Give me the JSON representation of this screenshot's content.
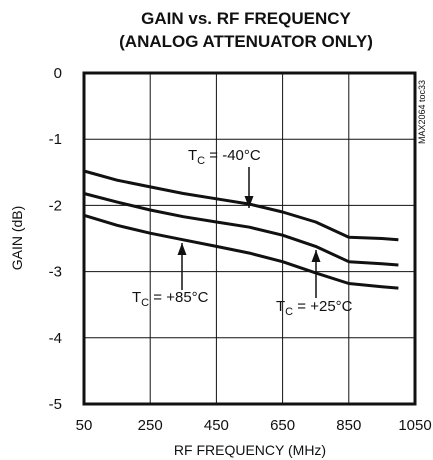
{
  "chart_data": {
    "type": "line",
    "title_line1": "GAIN vs. RF FREQUENCY",
    "title_line2": "(ANALOG ATTENUATOR ONLY)",
    "xlabel": "RF FREQUENCY (MHz)",
    "ylabel": "GAIN (dB)",
    "xlim": [
      50,
      1050
    ],
    "ylim": [
      -5,
      0
    ],
    "x_ticks": [
      "50",
      "250",
      "450",
      "650",
      "850",
      "1050"
    ],
    "y_ticks": [
      "0",
      "-1",
      "-2",
      "-3",
      "-4",
      "-5"
    ],
    "grid": true,
    "side_label": "MAX2064 toc33",
    "series": [
      {
        "name": "-40°C",
        "x": [
          50,
          150,
          250,
          350,
          450,
          550,
          650,
          750,
          850,
          950,
          1000
        ],
        "y": [
          -1.48,
          -1.62,
          -1.72,
          -1.82,
          -1.9,
          -1.98,
          -2.1,
          -2.25,
          -2.48,
          -2.5,
          -2.52
        ]
      },
      {
        "name": "+25°C",
        "x": [
          50,
          150,
          250,
          350,
          450,
          550,
          650,
          750,
          850,
          950,
          1000
        ],
        "y": [
          -1.82,
          -1.95,
          -2.07,
          -2.17,
          -2.25,
          -2.33,
          -2.45,
          -2.62,
          -2.85,
          -2.88,
          -2.9
        ]
      },
      {
        "name": "+85°C",
        "x": [
          50,
          150,
          250,
          350,
          450,
          550,
          650,
          750,
          850,
          950,
          1000
        ],
        "y": [
          -2.15,
          -2.3,
          -2.42,
          -2.52,
          -2.62,
          -2.72,
          -2.85,
          -3.02,
          -3.18,
          -3.23,
          -3.25
        ]
      }
    ],
    "annotations": [
      {
        "prefix": "T",
        "sub": "C",
        "text": " = -40°C",
        "target_x": 555,
        "target_y": -1.98
      },
      {
        "prefix": "T",
        "sub": "C",
        "text": " = +85°C",
        "target_x": 340,
        "target_y": -2.5
      },
      {
        "prefix": "T",
        "sub": "C",
        "text": " = +25°C",
        "target_x": 755,
        "target_y": -2.63
      }
    ]
  }
}
